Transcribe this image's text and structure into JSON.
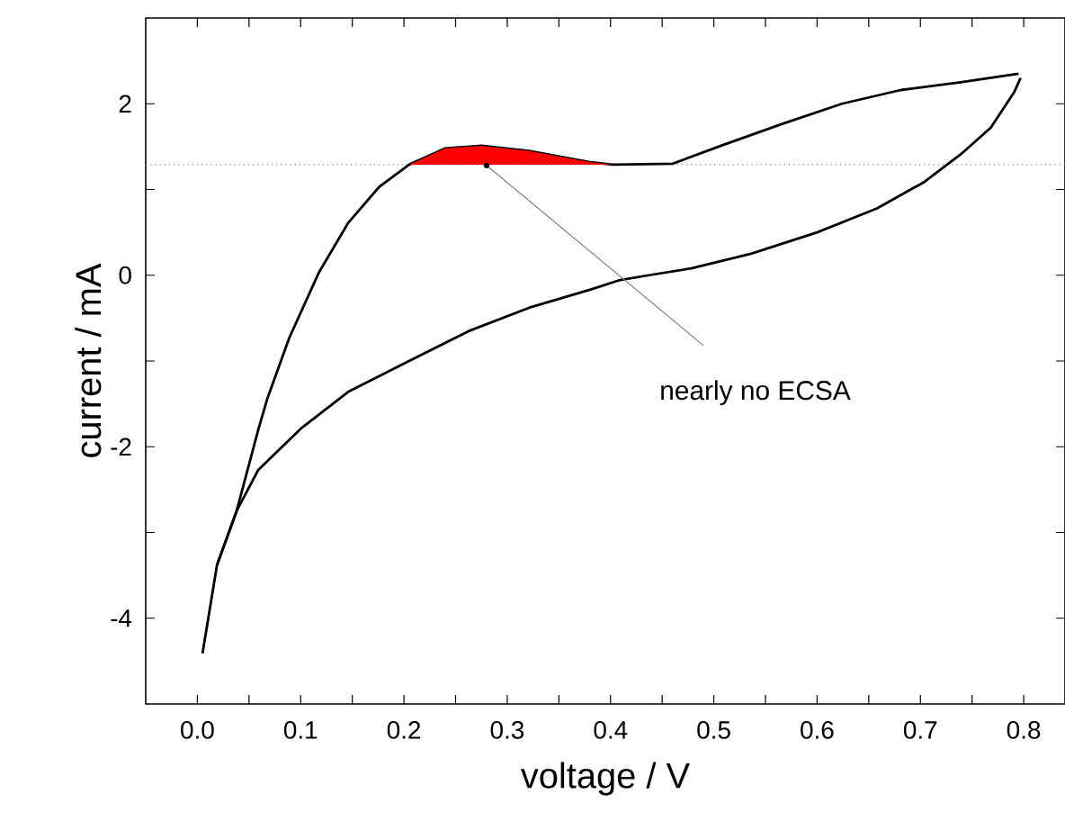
{
  "chart_data": {
    "type": "line",
    "xlabel": "voltage / V",
    "ylabel": "current / mA",
    "xlim": [
      -0.05,
      0.84
    ],
    "ylim": [
      -5,
      3
    ],
    "xticks": [
      {
        "value": 0,
        "label": "0.0"
      },
      {
        "value": 0.05,
        "label": null
      },
      {
        "value": 0.1,
        "label": "0.1"
      },
      {
        "value": 0.15,
        "label": null
      },
      {
        "value": 0.2,
        "label": "0.2"
      },
      {
        "value": 0.25,
        "label": null
      },
      {
        "value": 0.3,
        "label": "0.3"
      },
      {
        "value": 0.35,
        "label": null
      },
      {
        "value": 0.4,
        "label": "0.4"
      },
      {
        "value": 0.45,
        "label": null
      },
      {
        "value": 0.5,
        "label": "0.5"
      },
      {
        "value": 0.55,
        "label": null
      },
      {
        "value": 0.6,
        "label": "0.6"
      },
      {
        "value": 0.65,
        "label": null
      },
      {
        "value": 0.7,
        "label": "0.7"
      },
      {
        "value": 0.75,
        "label": null
      },
      {
        "value": 0.8,
        "label": "0.8"
      }
    ],
    "yticks": [
      -4,
      {
        "value": -3,
        "label": null
      },
      -2,
      {
        "value": -1,
        "label": null
      },
      0,
      {
        "value": 1,
        "label": null
      },
      2
    ],
    "grid": false,
    "marker": "none",
    "line_style": "solid",
    "series": [
      {
        "color": "#000000",
        "x": [
          0.005,
          0.019,
          0.038,
          0.059,
          0.068,
          0.089,
          0.118,
          0.146,
          0.176,
          0.205,
          0.24,
          0.275,
          0.321,
          0.38,
          0.402,
          0.46,
          0.507,
          0.565,
          0.624,
          0.681,
          0.739,
          0.795
        ],
        "values": [
          -4.41,
          -3.38,
          -2.75,
          -1.8,
          -1.43,
          -0.73,
          0.04,
          0.61,
          1.03,
          1.29,
          1.48,
          1.51,
          1.45,
          1.32,
          1.29,
          1.3,
          1.51,
          1.76,
          2.0,
          2.16,
          2.25,
          2.35
        ]
      },
      {
        "color": "#000000",
        "x": [
          0.019,
          0.038,
          0.059,
          0.101,
          0.146,
          0.205,
          0.263,
          0.321,
          0.38,
          0.408,
          0.437,
          0.478,
          0.536,
          0.6,
          0.658,
          0.704,
          0.739,
          0.768,
          0.791,
          0.797
        ],
        "values": [
          -3.38,
          -2.75,
          -2.27,
          -1.78,
          -1.36,
          -1.0,
          -0.65,
          -0.38,
          -0.17,
          -0.06,
          0.0,
          0.08,
          0.25,
          0.5,
          0.78,
          1.09,
          1.41,
          1.72,
          2.14,
          2.3
        ]
      },
      {
        "type": "area",
        "color": "#ff0000",
        "x": [
          0.205,
          0.24,
          0.275,
          0.321,
          0.38,
          0.402
        ],
        "values": [
          1.29,
          1.48,
          1.51,
          1.45,
          1.32,
          1.29
        ]
      }
    ],
    "ref_lines": [
      {
        "axis": "y",
        "value": 1.29,
        "color": "#808080",
        "line_style": "dotted"
      }
    ],
    "annotations": [
      {
        "text": "nearly no ECSA",
        "x": 0.28,
        "y": 1.28
      }
    ]
  }
}
